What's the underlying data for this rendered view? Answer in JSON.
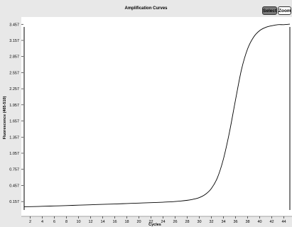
{
  "toolbar": {
    "select_label": "Select",
    "zoom_label": "Zoom"
  },
  "chart_data": {
    "type": "line",
    "title": "Amplification Curves",
    "xlabel": "Cycles",
    "ylabel": "Fluorescence (465-510)",
    "xlim": [
      1,
      45
    ],
    "ylim": [
      0,
      3.5
    ],
    "grid": false,
    "x_ticks": [
      2,
      4,
      6,
      8,
      10,
      12,
      14,
      16,
      18,
      20,
      22,
      24,
      26,
      28,
      30,
      32,
      34,
      36,
      38,
      40,
      42,
      44
    ],
    "y_ticks": [
      "0.157",
      "0.457",
      "0.757",
      "1.057",
      "1.357",
      "1.657",
      "1.957",
      "2.257",
      "2.557",
      "2.857",
      "3.157",
      "3.457"
    ],
    "y_tick_values": [
      0.157,
      0.457,
      0.757,
      1.057,
      1.357,
      1.657,
      1.957,
      2.257,
      2.557,
      2.857,
      3.157,
      3.457
    ],
    "series": [
      {
        "color": "#000000",
        "points": [
          [
            1,
            0.06
          ],
          [
            2,
            0.062
          ],
          [
            4,
            0.068
          ],
          [
            6,
            0.075
          ],
          [
            8,
            0.082
          ],
          [
            10,
            0.09
          ],
          [
            12,
            0.097
          ],
          [
            14,
            0.105
          ],
          [
            16,
            0.112
          ],
          [
            18,
            0.12
          ],
          [
            20,
            0.128
          ],
          [
            22,
            0.136
          ],
          [
            24,
            0.145
          ],
          [
            26,
            0.158
          ],
          [
            28,
            0.18
          ],
          [
            29,
            0.2
          ],
          [
            30,
            0.23
          ],
          [
            31,
            0.29
          ],
          [
            32,
            0.4
          ],
          [
            33,
            0.6
          ],
          [
            34,
            0.95
          ],
          [
            35,
            1.45
          ],
          [
            36,
            2.05
          ],
          [
            37,
            2.62
          ],
          [
            38,
            3.0
          ],
          [
            39,
            3.22
          ],
          [
            40,
            3.34
          ],
          [
            41,
            3.4
          ],
          [
            42,
            3.43
          ],
          [
            43,
            3.45
          ],
          [
            44,
            3.45
          ],
          [
            45,
            3.46
          ]
        ]
      }
    ]
  }
}
